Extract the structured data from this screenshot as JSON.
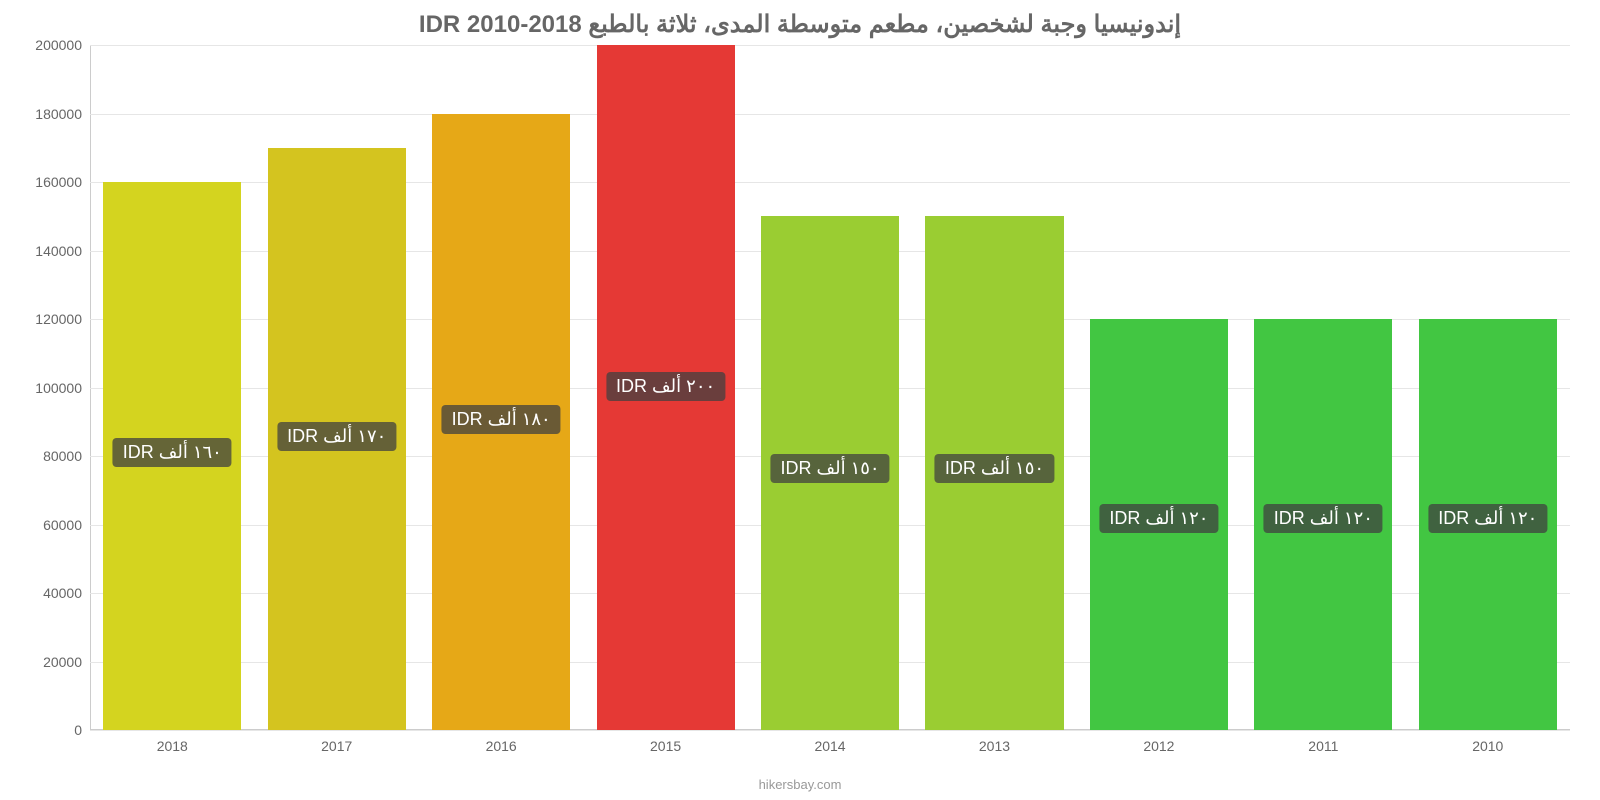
{
  "chart": {
    "type": "bar",
    "title": "إندونيسيا وجبة لشخصين، مطعم متوسطة المدى، ثلاثة بالطبع 2018-2010 IDR",
    "title_fontsize": 24,
    "title_color": "#666666",
    "attribution": "hikersbay.com",
    "background_color": "#ffffff",
    "grid_color": "#e6e6e6",
    "axis_color": "#cccccc",
    "tick_label_color": "#666666",
    "tick_label_fontsize": 14,
    "data_label_bg": "rgba(64,64,64,0.75)",
    "data_label_color": "#ffffff",
    "data_label_fontsize": 18,
    "ylim": [
      0,
      200000
    ],
    "ytick_step": 20000,
    "yticks": [
      0,
      20000,
      40000,
      60000,
      80000,
      100000,
      120000,
      140000,
      160000,
      180000,
      200000
    ],
    "categories": [
      "2010",
      "2011",
      "2012",
      "2013",
      "2014",
      "2015",
      "2016",
      "2017",
      "2018"
    ],
    "values": [
      120000,
      120000,
      120000,
      150000,
      150000,
      200000,
      180000,
      170000,
      160000
    ],
    "bar_colors": [
      "#42c642",
      "#42c642",
      "#42c642",
      "#9acd32",
      "#9acd32",
      "#e53935",
      "#e6a817",
      "#d4c41f",
      "#d4d41f"
    ],
    "data_labels": [
      "١٢٠ ألف IDR",
      "١٢٠ ألف IDR",
      "١٢٠ ألف IDR",
      "١٥٠ ألف IDR",
      "١٥٠ ألف IDR",
      "٢٠٠ ألف IDR",
      "١٨٠ ألف IDR",
      "١٧٠ ألف IDR",
      "١٦٠ ألف IDR"
    ],
    "bar_width": 0.84
  }
}
